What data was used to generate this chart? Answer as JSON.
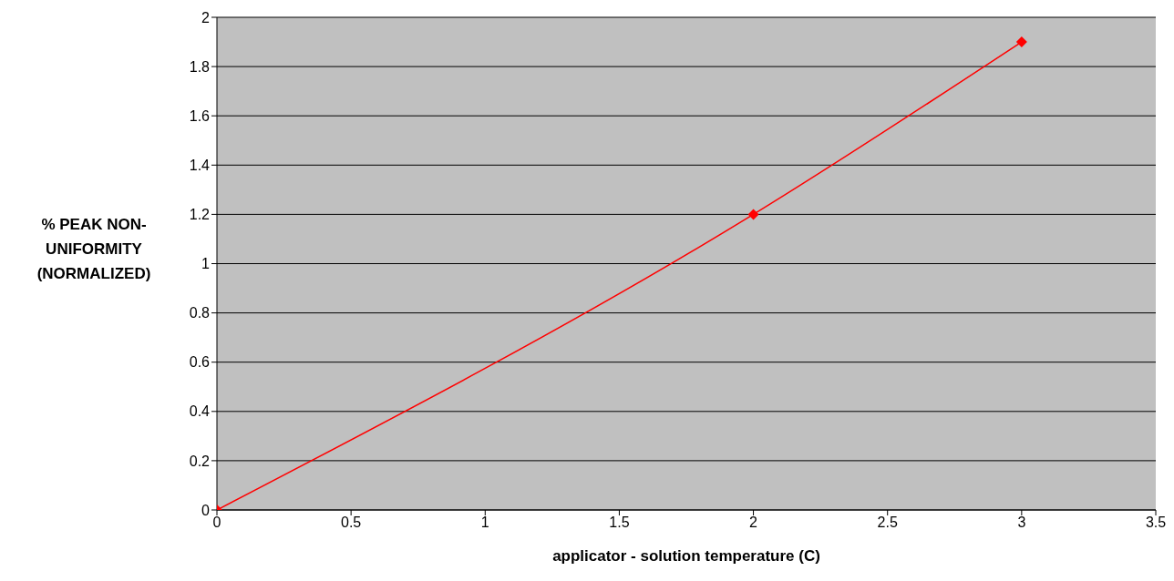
{
  "chart_data": {
    "type": "line",
    "xlabel": "applicator - solution temperature (C)",
    "ylabel": "% PEAK NON-UNIFORMITY (NORMALIZED)",
    "series": [
      {
        "color": "#ff0000",
        "x": [
          0,
          2,
          3
        ],
        "values": [
          0,
          1.2,
          1.9
        ]
      }
    ],
    "xlim": [
      0,
      3.5
    ],
    "xticks": [
      0,
      0.5,
      1,
      1.5,
      2,
      2.5,
      3,
      3.5
    ],
    "ylim": [
      0,
      2
    ],
    "yticks": [
      0,
      0.2,
      0.4,
      0.6,
      0.8,
      1,
      1.2,
      1.4,
      1.6,
      1.8,
      2
    ],
    "grid": "y",
    "marker": "diamond",
    "legend": false
  }
}
